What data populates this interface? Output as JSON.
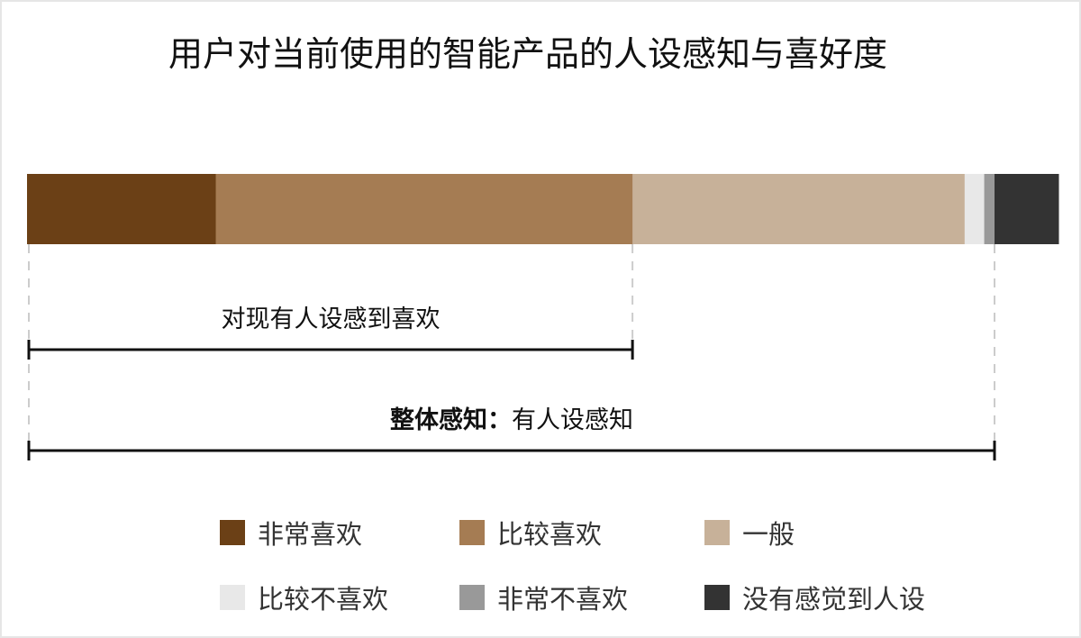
{
  "chart_data": {
    "type": "bar",
    "orientation": "horizontal-stacked",
    "title": "用户对当前使用的智能产品的人设感知与喜好度",
    "xlim": [
      0,
      100
    ],
    "series": [
      {
        "name": "非常喜欢",
        "value": 18.3,
        "color": "#6b4016"
      },
      {
        "name": "比较喜欢",
        "value": 40.4,
        "color": "#a57c53"
      },
      {
        "name": "一般",
        "value": 32.2,
        "color": "#c7b199"
      },
      {
        "name": "比较不喜欢",
        "value": 1.9,
        "color": "#e8e8e8"
      },
      {
        "name": "非常不喜欢",
        "value": 1.0,
        "color": "#999999"
      },
      {
        "name": "没有感觉到人设",
        "value": 6.2,
        "color": "#333333"
      }
    ],
    "annotations": [
      {
        "label": "对现有人设感到喜欢",
        "from": 0,
        "to": 58.7
      },
      {
        "label_bold": "整体感知：",
        "label": "有人设感知",
        "from": 0,
        "to": 93.8
      }
    ],
    "legend_position": "bottom"
  }
}
